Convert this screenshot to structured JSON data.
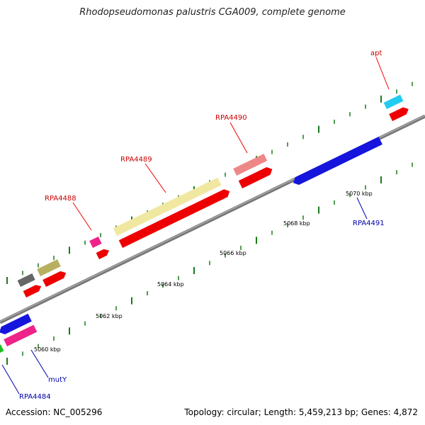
{
  "title": "Rhodopseudomonas palustris CGA009, complete genome",
  "footer": {
    "accession": "Accession: NC_005296",
    "summary": "Topology: circular; Length: 5,459,213 bp; Genes: 4,872"
  },
  "colors": {
    "backbone": "#888888",
    "tick": "#1a7a1a",
    "forward_label": "#cc0000",
    "reverse_label": "#0000aa",
    "cds_red": "#ee0000",
    "blue_gene": "#1515dd",
    "pink_gene": "#ee2288",
    "khaki_gene": "#b8b060",
    "grey_gene": "#666666",
    "yellow_gene": "#f0e8a0",
    "salmon_gene": "#ee8888",
    "cyan_gene": "#22ccee",
    "green_gene": "#22bb22"
  },
  "scale_labels": [
    "5060 kbp",
    "5062 kbp",
    "5064 kbp",
    "5066 kbp",
    "5068 kbp",
    "5070 kbp"
  ],
  "gene_labels": {
    "forward": [
      "RPA4488",
      "RPA4489",
      "RPA4490",
      "apt"
    ],
    "reverse": [
      "RPA4491",
      "mutY",
      "RPA4484"
    ]
  }
}
